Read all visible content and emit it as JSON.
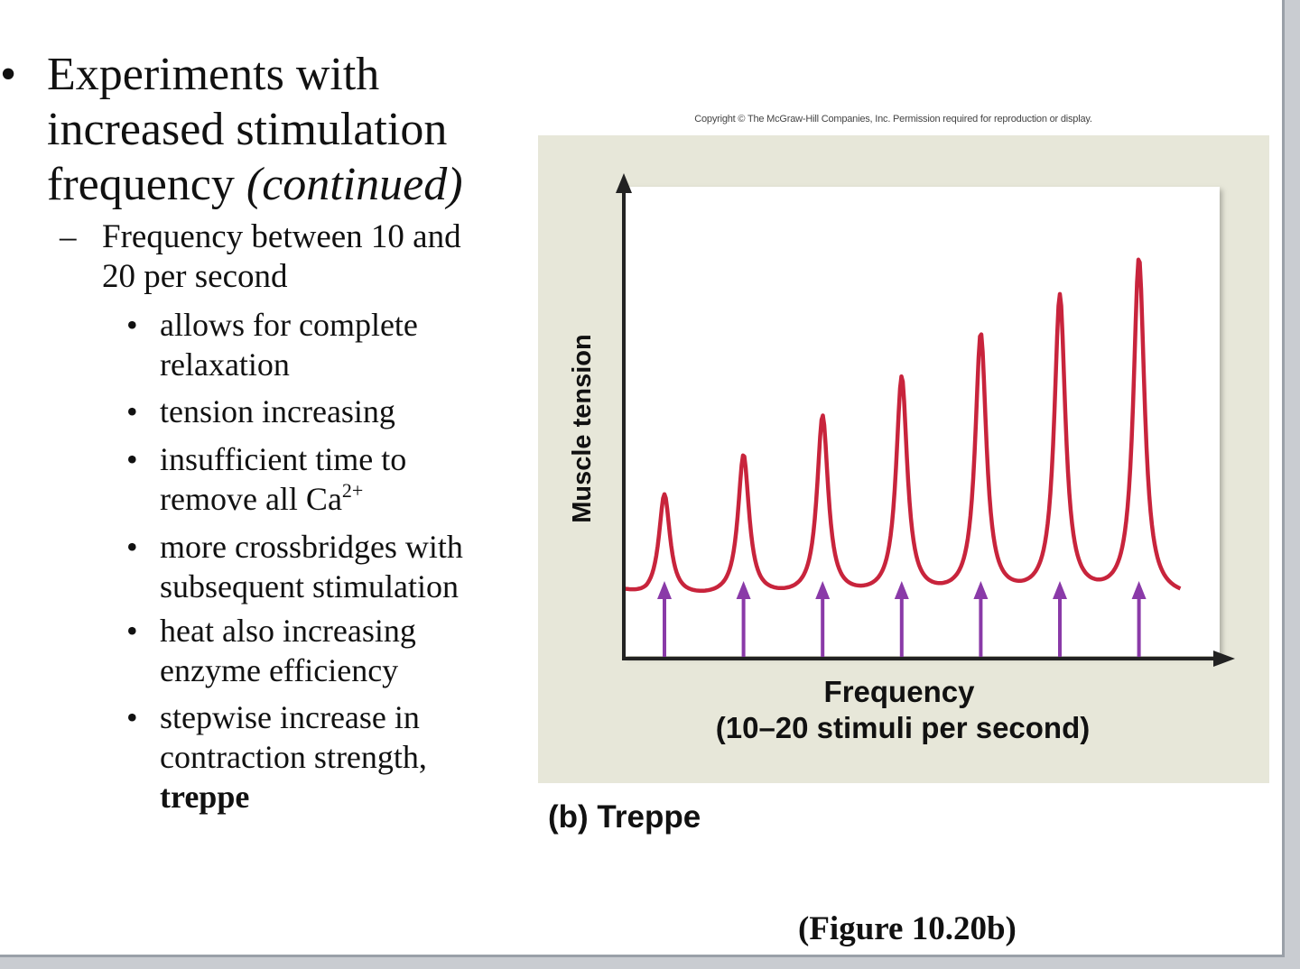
{
  "slide": {
    "main_bullet": {
      "text": "Experiments with increased stimulation frequency",
      "italic_suffix": "(continued)"
    },
    "sub_bullet": "Frequency between 10 and 20 per second",
    "sub_sub_bullets": [
      "allows for complete relaxation",
      "tension increasing",
      "insufficient time to remove all Ca",
      "more crossbridges with subsequent stimulation",
      "heat also increasing enzyme efficiency",
      "stepwise increase in contraction strength,"
    ],
    "ca_superscript": "2+",
    "treppe_bold": "treppe",
    "figure_copyright": "Copyright © The McGraw-Hill Companies, Inc. Permission required for reproduction or display.",
    "figure_caption": "(b) Treppe",
    "figure_reference": "(Figure 10.20b)"
  },
  "chart_data": {
    "type": "line",
    "title": "(b) Treppe",
    "xlabel": "Frequency",
    "xlabel_sub": "(10–20 stimuli per second)",
    "ylabel": "Muscle tension",
    "series": [
      {
        "name": "Muscle tension",
        "color": "#c8243c",
        "stimulus_index": [
          1,
          2,
          3,
          4,
          5,
          6,
          7
        ],
        "peak_tension": [
          38,
          47,
          56,
          65,
          75,
          84,
          93
        ],
        "baseline_tension": 14
      }
    ],
    "stimuli": {
      "count": 7,
      "color": "#8a3aa8"
    },
    "ylim": [
      0,
      110
    ],
    "grid": false
  }
}
